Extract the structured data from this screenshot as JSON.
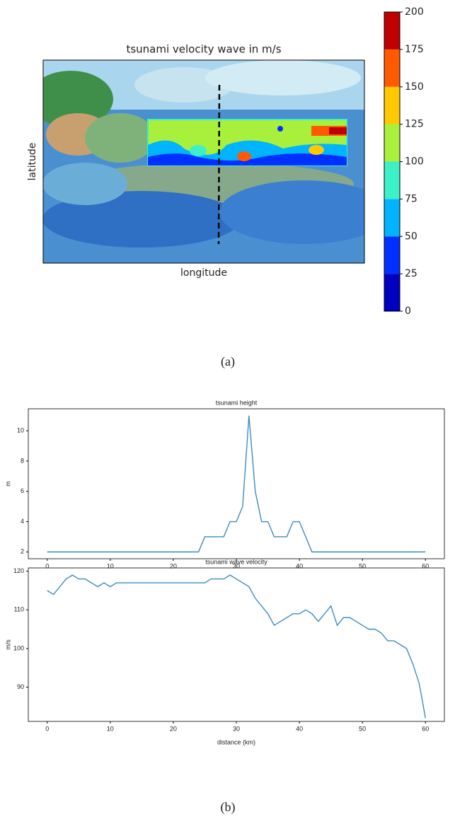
{
  "chart_data": [
    {
      "type": "map",
      "title": "tsunami velocity wave in m/s",
      "xlabel": "longitude",
      "ylabel": "latitude",
      "colorbar": {
        "lim": [
          0,
          200
        ],
        "ticks": [
          0,
          25,
          50,
          75,
          100,
          125,
          150,
          175,
          200
        ],
        "colors": [
          "#0000c0",
          "#0030ff",
          "#00b4ff",
          "#3cf0c8",
          "#a8f03c",
          "#ffc800",
          "#ff5a00",
          "#c00000"
        ]
      }
    },
    {
      "type": "line",
      "title": "tsunami height",
      "ylabel": "m",
      "x": [
        0,
        1,
        2,
        3,
        4,
        5,
        6,
        7,
        8,
        9,
        10,
        11,
        12,
        13,
        14,
        15,
        16,
        17,
        18,
        19,
        20,
        21,
        22,
        23,
        24,
        25,
        26,
        27,
        28,
        29,
        30,
        31,
        32,
        33,
        34,
        35,
        36,
        37,
        38,
        39,
        40,
        41,
        42,
        43,
        44,
        45,
        46,
        47,
        48,
        49,
        50,
        51,
        52,
        53,
        54,
        55,
        56,
        57,
        58,
        59,
        60
      ],
      "series": [
        {
          "color": "#3b8bc2",
          "values": [
            2,
            2,
            2,
            2,
            2,
            2,
            2,
            2,
            2,
            2,
            2,
            2,
            2,
            2,
            2,
            2,
            2,
            2,
            2,
            2,
            2,
            2,
            2,
            2,
            2,
            3,
            3,
            3,
            3,
            4,
            4,
            5,
            11,
            6,
            4,
            4,
            3,
            3,
            3,
            4,
            4,
            3,
            2,
            2,
            2,
            2,
            2,
            2,
            2,
            2,
            2,
            2,
            2,
            2,
            2,
            2,
            2,
            2,
            2,
            2,
            2
          ]
        }
      ],
      "xlim": [
        -3,
        63
      ],
      "xticks": [
        0,
        10,
        20,
        30,
        40,
        50,
        60
      ],
      "ylim": [
        1.55,
        11.45
      ],
      "yticks": [
        2,
        4,
        6,
        8,
        10
      ]
    },
    {
      "type": "line",
      "title": "tsunami wave velocity",
      "ylabel": "m/s",
      "xlabel": "distance (km)",
      "x": [
        0,
        1,
        2,
        3,
        4,
        5,
        6,
        7,
        8,
        9,
        10,
        11,
        12,
        13,
        14,
        15,
        16,
        17,
        18,
        19,
        20,
        21,
        22,
        23,
        24,
        25,
        26,
        27,
        28,
        29,
        30,
        31,
        32,
        33,
        34,
        35,
        36,
        37,
        38,
        39,
        40,
        41,
        42,
        43,
        44,
        45,
        46,
        47,
        48,
        49,
        50,
        51,
        52,
        53,
        54,
        55,
        56,
        57,
        58,
        59,
        60
      ],
      "series": [
        {
          "color": "#3b8bc2",
          "values": [
            115,
            114,
            116,
            118,
            119,
            118,
            118,
            117,
            116,
            117,
            116,
            117,
            117,
            117,
            117,
            117,
            117,
            117,
            117,
            117,
            117,
            117,
            117,
            117,
            117,
            117,
            118,
            118,
            118,
            119,
            118,
            117,
            116,
            113,
            111,
            109,
            106,
            107,
            108,
            109,
            109,
            110,
            109,
            107,
            109,
            111,
            106,
            108,
            108,
            107,
            106,
            105,
            105,
            104,
            102,
            102,
            101,
            100,
            96,
            91,
            82
          ]
        }
      ],
      "xlim": [
        -3,
        63
      ],
      "xticks": [
        0,
        10,
        20,
        30,
        40,
        50,
        60
      ],
      "ylim": [
        81.15,
        120.85
      ],
      "yticks": [
        90,
        100,
        110,
        120
      ]
    }
  ],
  "captions": [
    "(a)",
    "(b)"
  ]
}
